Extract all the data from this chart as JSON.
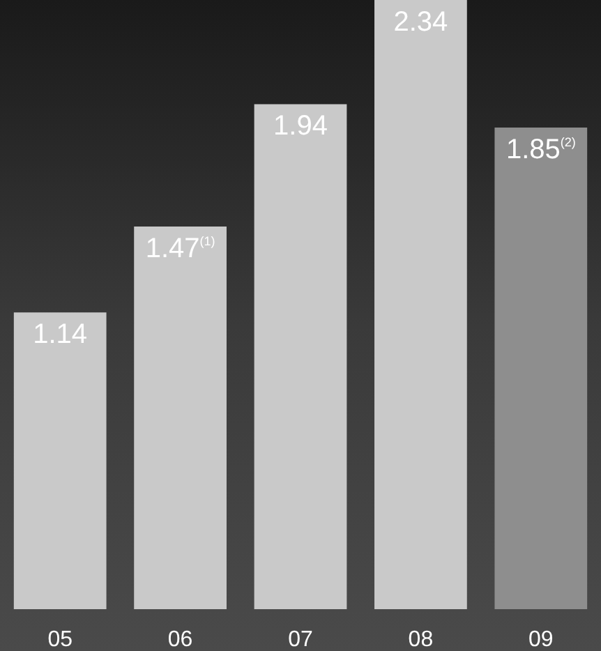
{
  "chart_data": {
    "type": "bar",
    "categories": [
      "05",
      "06",
      "07",
      "08",
      "09"
    ],
    "values": [
      1.14,
      1.47,
      1.94,
      2.34,
      1.85
    ],
    "colors": [
      "#c9c9c9",
      "#c9c9c9",
      "#c9c9c9",
      "#c9c9c9",
      "#8e8e8e"
    ],
    "value_labels": [
      "1.14",
      "1.47$^{(1)}$",
      "1.94",
      "2.34",
      "1.85$^{(2)}$"
    ],
    "ylim": [
      0,
      2.34
    ],
    "tick_labels": "x"
  }
}
